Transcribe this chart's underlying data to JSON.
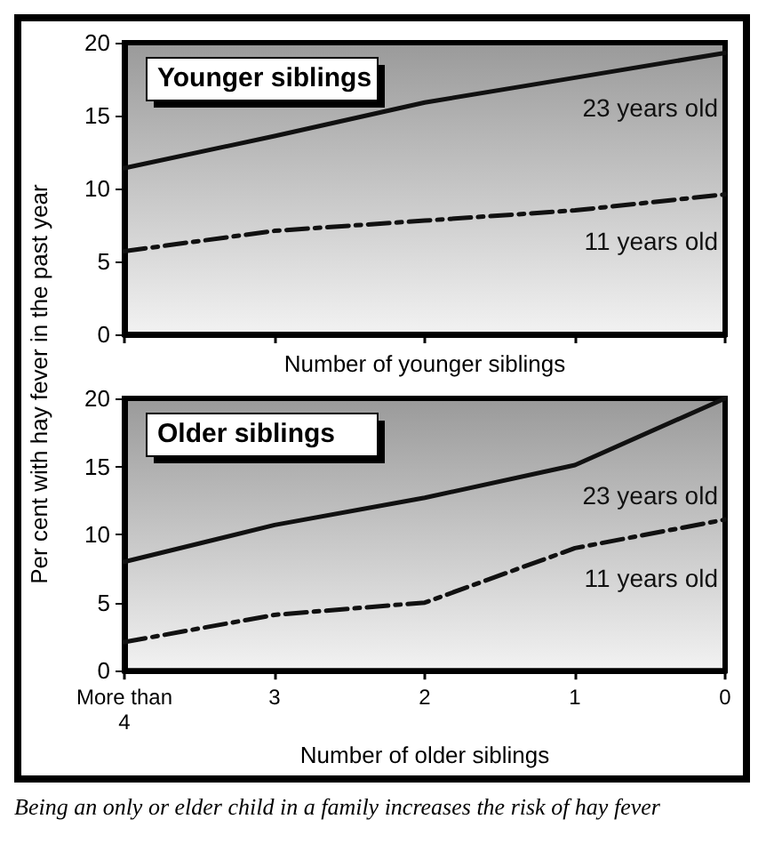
{
  "chart_data": [
    {
      "type": "line",
      "title": "Younger siblings",
      "xlabel": "Number of younger siblings",
      "ylabel": "Per cent with hay fever in the past year",
      "categories": [
        null,
        null,
        null,
        null,
        null
      ],
      "ylim": [
        0,
        20
      ],
      "yticks": [
        0,
        5,
        10,
        15,
        20
      ],
      "grid": false,
      "legend": false,
      "tick_labels": "y",
      "marker": "none",
      "series": [
        {
          "name": "23 years old",
          "color": "#111111",
          "line_style": "solid",
          "values": [
            11.4,
            13.6,
            15.9,
            17.6,
            19.3
          ]
        },
        {
          "name": "11 years old",
          "color": "#111111",
          "line_style": "dashed",
          "values": [
            5.7,
            7.1,
            7.8,
            8.5,
            9.6
          ]
        }
      ]
    },
    {
      "type": "line",
      "title": "Older siblings",
      "xlabel": "Number of older siblings",
      "categories": [
        "More than\n4",
        "3",
        "2",
        "1",
        "0"
      ],
      "ylim": [
        0,
        20
      ],
      "yticks": [
        0,
        5,
        10,
        15,
        20
      ],
      "grid": false,
      "legend": false,
      "marker": "none",
      "annotations": [
        "Being an only or elder child in a family increases the risk of hay fever"
      ],
      "series": [
        {
          "name": "23 years old",
          "color": "#111111",
          "line_style": "solid",
          "values": [
            8,
            10.7,
            12.7,
            15.1,
            20
          ]
        },
        {
          "name": "11 years old",
          "color": "#111111",
          "line_style": "dashed",
          "values": [
            2.1,
            4.1,
            5,
            9,
            11.1
          ]
        }
      ]
    }
  ]
}
